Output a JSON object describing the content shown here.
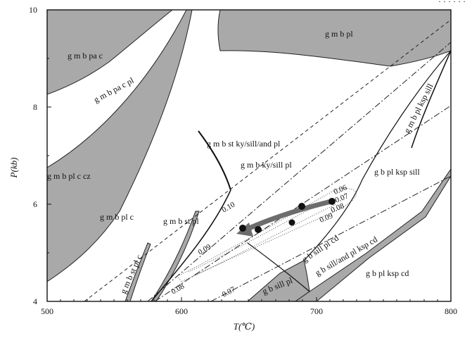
{
  "header_text": "· · · · · ·",
  "axes": {
    "x_title": "T(℃)",
    "y_title": "P(kb)",
    "x_ticks": [
      "500",
      "600",
      "700",
      "800"
    ],
    "y_ticks": [
      "4",
      "6",
      "8",
      "10"
    ],
    "x_range": [
      500,
      800
    ],
    "y_range": [
      4,
      10
    ]
  },
  "fields": {
    "gmbpac": "g m b pa c",
    "gmbpl_top": "g m b pl",
    "gmbpacpl": "g m b pa c pl",
    "gmbplkspsill": "g m b pl ksp sill",
    "gmbstkysillandpl": "g m b st ky/sill/and pl",
    "gmbkysillpl": "g m b ky/sill pl",
    "gmbplccz": "g m b  pl c cz",
    "gbplkspsill": "g b pl ksp sill",
    "gmbplc": "g m b  pl c",
    "gmbstpl": "g m b st  pl",
    "gbsillplcd": "g b sill  pl cd",
    "gmbstplc": "g m b st pl c",
    "gbsillandplkspcd": "g b sill/and  pl ksp cd",
    "gbsillpl": "g b sill  pl",
    "gbplkspcd": "g b pl ksp cd"
  },
  "isopleths": {
    "i010": "0.10",
    "i009": "0.09",
    "i008": "0.08",
    "i007a": "0.07",
    "i006": "0.06",
    "i007b": "0.07",
    "i008b": "0.08",
    "i009b": "0.09"
  },
  "colors": {
    "shaded_field": "#a9a9a9",
    "path_arrow": "#6d6d6d",
    "points": "#111111",
    "uncertainty_ellipse": "#555555"
  },
  "pt_points_estimated": [
    {
      "T": 645,
      "P": 5.55
    },
    {
      "T": 657,
      "P": 5.5
    },
    {
      "T": 681,
      "P": 5.65
    },
    {
      "T": 689,
      "P": 5.95
    },
    {
      "T": 711,
      "P": 6.07
    }
  ]
}
